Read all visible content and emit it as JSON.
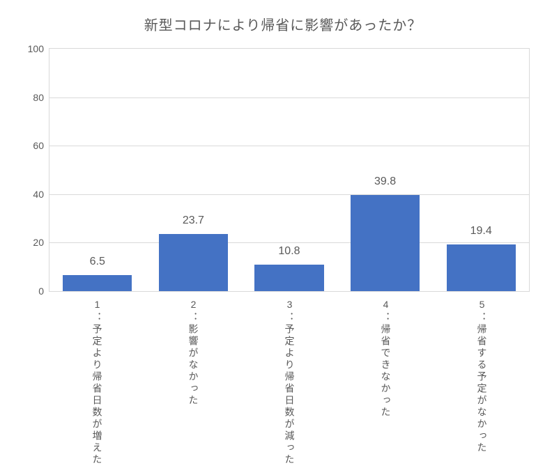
{
  "chart": {
    "type": "bar",
    "title": "新型コロナにより帰省に影響があったか？",
    "title_fontsize": 20,
    "title_color": "#595959",
    "categories": [
      "1：予定より帰省日数が増えた",
      "2：影響がなかった",
      "3：予定より帰省日数が減った",
      "4：帰省できなかった",
      "5：帰省する予定がなかった"
    ],
    "values": [
      6.5,
      23.7,
      10.8,
      39.8,
      19.4
    ],
    "bar_color": "#4472c4",
    "bar_width": 0.72,
    "ylim": [
      0,
      100
    ],
    "yticks": [
      0,
      20,
      40,
      60,
      80,
      100
    ],
    "ytick_step": 20,
    "grid_color": "#d9d9d9",
    "border_color": "#d9d9d9",
    "background_color": "#ffffff",
    "text_color": "#595959",
    "value_label_fontsize": 16,
    "tick_fontsize": 14,
    "xlabel_fontsize": 14
  }
}
